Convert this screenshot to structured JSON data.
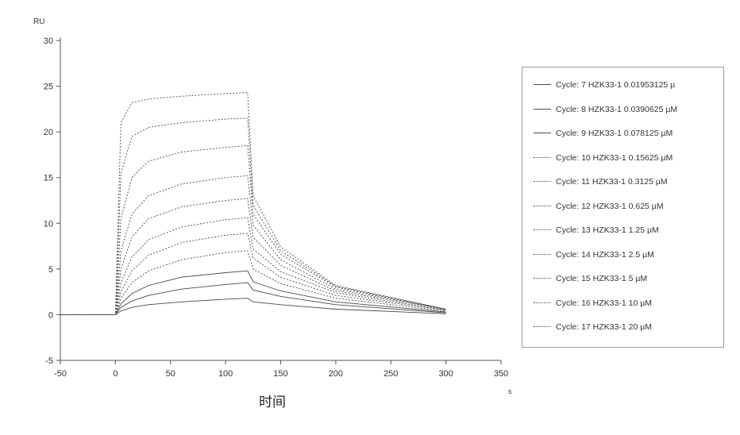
{
  "chart_data": {
    "type": "line",
    "title": "",
    "xlabel": "时间",
    "x_unit": "s",
    "y_unit": "RU",
    "xlim": [
      -50,
      350
    ],
    "ylim": [
      -5,
      30
    ],
    "x_ticks": [
      "-50",
      "0",
      "50",
      "100",
      "150",
      "200",
      "250",
      "300",
      "350"
    ],
    "y_ticks": [
      "30",
      "25",
      "20",
      "15",
      "10",
      "5",
      "0",
      "-5"
    ],
    "grid": false,
    "legend_placement": "right",
    "x": [
      -50,
      0,
      5,
      15,
      30,
      60,
      100,
      120,
      125,
      150,
      200,
      300
    ],
    "series": [
      {
        "name": "Cycle: 7  HZK33-1  0.01953125 µ",
        "values": [
          0,
          0,
          0.4,
          0.8,
          1.1,
          1.4,
          1.7,
          1.8,
          1.4,
          1.1,
          0.6,
          0.1
        ]
      },
      {
        "name": "Cycle: 8  HZK33-1  0.0390625 µM",
        "values": [
          0,
          0,
          0.8,
          1.5,
          2.1,
          2.8,
          3.3,
          3.5,
          2.7,
          2.0,
          1.1,
          0.2
        ]
      },
      {
        "name": "Cycle: 9  HZK33-1  0.078125 µM",
        "values": [
          0,
          0,
          1.2,
          2.3,
          3.2,
          4.1,
          4.6,
          4.8,
          3.6,
          2.6,
          1.4,
          0.3
        ]
      },
      {
        "name": "Cycle: 10  HZK33-1  0.15625 µM",
        "values": [
          0,
          0,
          1.8,
          3.5,
          4.8,
          6.0,
          6.8,
          7.0,
          5.0,
          3.4,
          1.8,
          0.4
        ]
      },
      {
        "name": "Cycle: 11  HZK33-1  0.3125 µM",
        "values": [
          0,
          0,
          2.5,
          4.8,
          6.5,
          7.9,
          8.7,
          8.9,
          6.2,
          4.1,
          2.1,
          0.5
        ]
      },
      {
        "name": "Cycle: 12  HZK33-1  0.625 µM",
        "values": [
          0,
          0,
          3.5,
          6.3,
          8.2,
          9.6,
          10.4,
          10.6,
          7.2,
          4.7,
          2.4,
          0.5
        ]
      },
      {
        "name": "Cycle: 13  HZK33-1  1.25 µM",
        "values": [
          0,
          0,
          5.0,
          8.5,
          10.5,
          11.8,
          12.5,
          12.7,
          8.5,
          5.4,
          2.6,
          0.6
        ]
      },
      {
        "name": "Cycle: 14  HZK33-1  2.5 µM",
        "values": [
          0,
          0,
          7.0,
          11.0,
          13.0,
          14.3,
          15.0,
          15.2,
          9.8,
          6.0,
          2.8,
          0.6
        ]
      },
      {
        "name": "Cycle: 15  HZK33-1  5 µM",
        "values": [
          0,
          0,
          10.5,
          15.0,
          16.8,
          17.8,
          18.3,
          18.5,
          11.0,
          6.6,
          3.0,
          0.6
        ]
      },
      {
        "name": "Cycle: 16  HZK33-1  10 µM",
        "values": [
          0,
          0,
          15.5,
          19.5,
          20.5,
          21.0,
          21.4,
          21.5,
          12.0,
          7.0,
          3.1,
          0.6
        ]
      },
      {
        "name": "Cycle: 17  HZK33-1  20 µM",
        "values": [
          0,
          0,
          21.0,
          23.2,
          23.6,
          23.9,
          24.2,
          24.3,
          13.0,
          7.4,
          3.2,
          0.6
        ]
      }
    ],
    "colors": {
      "axis": "#555555",
      "line": "#4a4a4a",
      "legend_border": "#9a9a9a"
    }
  }
}
